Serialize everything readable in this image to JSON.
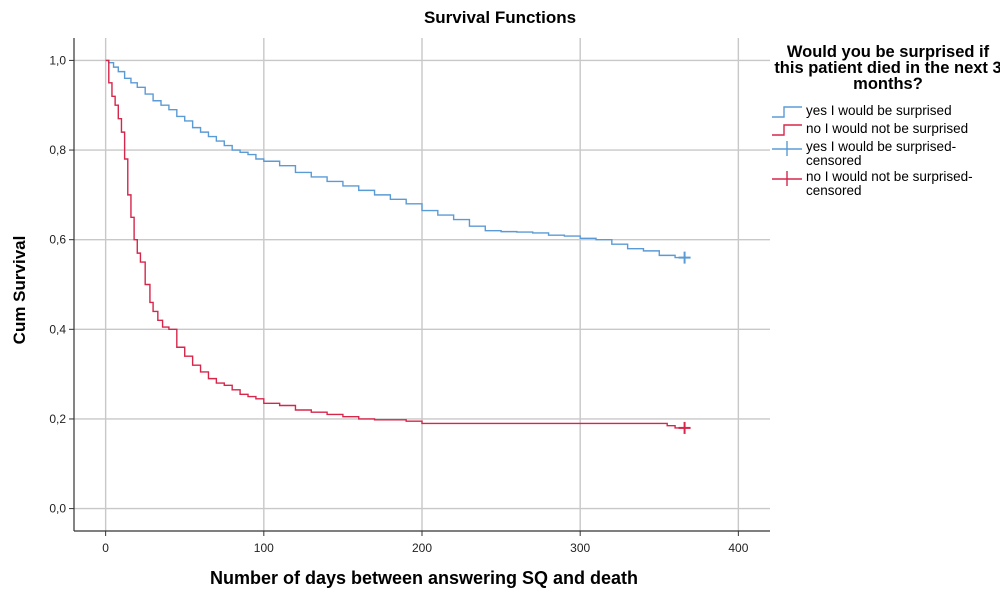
{
  "chart_data": {
    "type": "line",
    "step": true,
    "title": "Survival Functions",
    "xlabel": "Number of days between answering SQ and death",
    "ylabel": "Cum Survival",
    "xlim": [
      -20,
      420
    ],
    "ylim": [
      -0.05,
      1.05
    ],
    "xticks": [
      0,
      100,
      200,
      300,
      400
    ],
    "xtick_labels": [
      "0",
      "100",
      "200",
      "300",
      "400"
    ],
    "yticks": [
      0,
      0.2,
      0.4,
      0.6,
      0.8,
      1.0
    ],
    "ytick_labels": [
      "0,0",
      "0,2",
      "0,4",
      "0,6",
      "0,8",
      "1,0"
    ],
    "grid": true,
    "legend_title": "Would you be surprised if this patient died in the next 3 months?",
    "legend_placement": "right",
    "series": [
      {
        "name": "yes I would be surprised",
        "color": "#5b9bd5",
        "x": [
          0,
          2,
          5,
          8,
          12,
          16,
          20,
          25,
          30,
          35,
          40,
          45,
          50,
          55,
          60,
          65,
          70,
          75,
          80,
          85,
          90,
          95,
          100,
          110,
          120,
          130,
          140,
          150,
          160,
          170,
          180,
          190,
          200,
          210,
          220,
          230,
          240,
          250,
          260,
          270,
          280,
          290,
          300,
          310,
          320,
          330,
          340,
          350,
          360,
          366
        ],
        "y": [
          1.0,
          0.995,
          0.985,
          0.975,
          0.96,
          0.95,
          0.94,
          0.925,
          0.91,
          0.9,
          0.89,
          0.875,
          0.865,
          0.85,
          0.84,
          0.83,
          0.82,
          0.81,
          0.8,
          0.795,
          0.79,
          0.78,
          0.775,
          0.765,
          0.75,
          0.74,
          0.73,
          0.72,
          0.71,
          0.7,
          0.69,
          0.68,
          0.665,
          0.655,
          0.645,
          0.63,
          0.62,
          0.618,
          0.617,
          0.615,
          0.61,
          0.608,
          0.603,
          0.6,
          0.59,
          0.58,
          0.575,
          0.565,
          0.56,
          0.56
        ]
      },
      {
        "name": "no I would not be surprised",
        "color": "#d6264a",
        "x": [
          0,
          2,
          4,
          6,
          8,
          10,
          12,
          14,
          16,
          18,
          20,
          22,
          25,
          28,
          30,
          33,
          36,
          40,
          45,
          50,
          55,
          60,
          65,
          70,
          75,
          80,
          85,
          90,
          95,
          100,
          110,
          120,
          130,
          140,
          150,
          160,
          170,
          190,
          200,
          250,
          300,
          350,
          355,
          360,
          366
        ],
        "y": [
          1.0,
          0.95,
          0.92,
          0.9,
          0.87,
          0.84,
          0.78,
          0.7,
          0.65,
          0.6,
          0.57,
          0.55,
          0.5,
          0.46,
          0.44,
          0.42,
          0.405,
          0.4,
          0.36,
          0.34,
          0.32,
          0.305,
          0.29,
          0.28,
          0.275,
          0.265,
          0.255,
          0.25,
          0.245,
          0.235,
          0.23,
          0.22,
          0.215,
          0.21,
          0.205,
          0.2,
          0.198,
          0.195,
          0.19,
          0.19,
          0.19,
          0.19,
          0.185,
          0.18,
          0.18
        ]
      }
    ],
    "censored_markers": [
      {
        "name": "yes I would be surprised-censored",
        "color": "#5b9bd5",
        "x": 366,
        "y": 0.56
      },
      {
        "name": "no I would not be surprised-censored",
        "color": "#d6264a",
        "x": 366,
        "y": 0.18
      }
    ]
  },
  "legend": {
    "title": "Would you be surprised if this patient died in the next 3 months?",
    "items": [
      {
        "label": "yes I would be surprised",
        "symbol": "step",
        "color": "#5b9bd5"
      },
      {
        "label": "no I would not be surprised",
        "symbol": "step",
        "color": "#d6264a"
      },
      {
        "label": "yes I would be surprised-censored",
        "symbol": "plus",
        "color": "#5b9bd5"
      },
      {
        "label": "no I would not be surprised-censored",
        "symbol": "plus",
        "color": "#d6264a"
      }
    ]
  }
}
